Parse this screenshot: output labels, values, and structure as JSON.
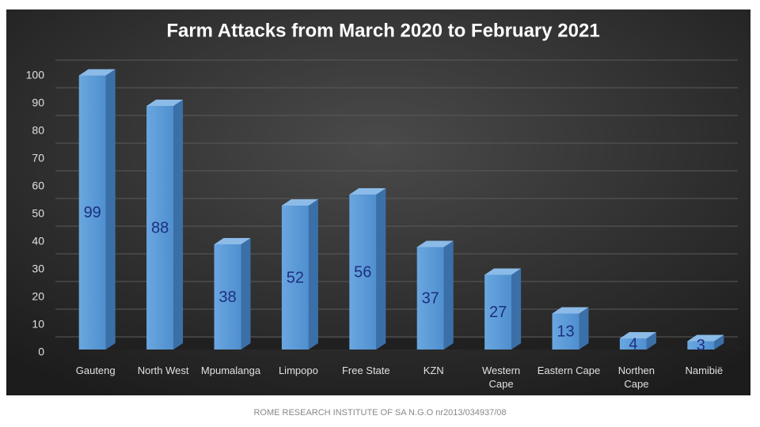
{
  "chart_data": {
    "type": "bar3d",
    "title": "Farm Attacks from March 2020 to February 2021",
    "categories": [
      "Gauteng",
      "North West",
      "Mpumalanga",
      "Limpopo",
      "Free State",
      "KZN",
      "Western\nCape",
      "Eastern Cape",
      "Northen\nCape",
      "Namibië"
    ],
    "values": [
      99,
      88,
      38,
      52,
      56,
      37,
      27,
      13,
      4,
      3
    ],
    "color": "#5b9bd5",
    "label_color": "#1c2f80",
    "ylim": [
      0,
      100
    ],
    "yticks": [
      0,
      10,
      20,
      30,
      40,
      50,
      60,
      70,
      80,
      90,
      100
    ],
    "grid": true,
    "source": "ROME RESEARCH INSTITUTE OF SA N.G.O nr2013/034937/08"
  }
}
